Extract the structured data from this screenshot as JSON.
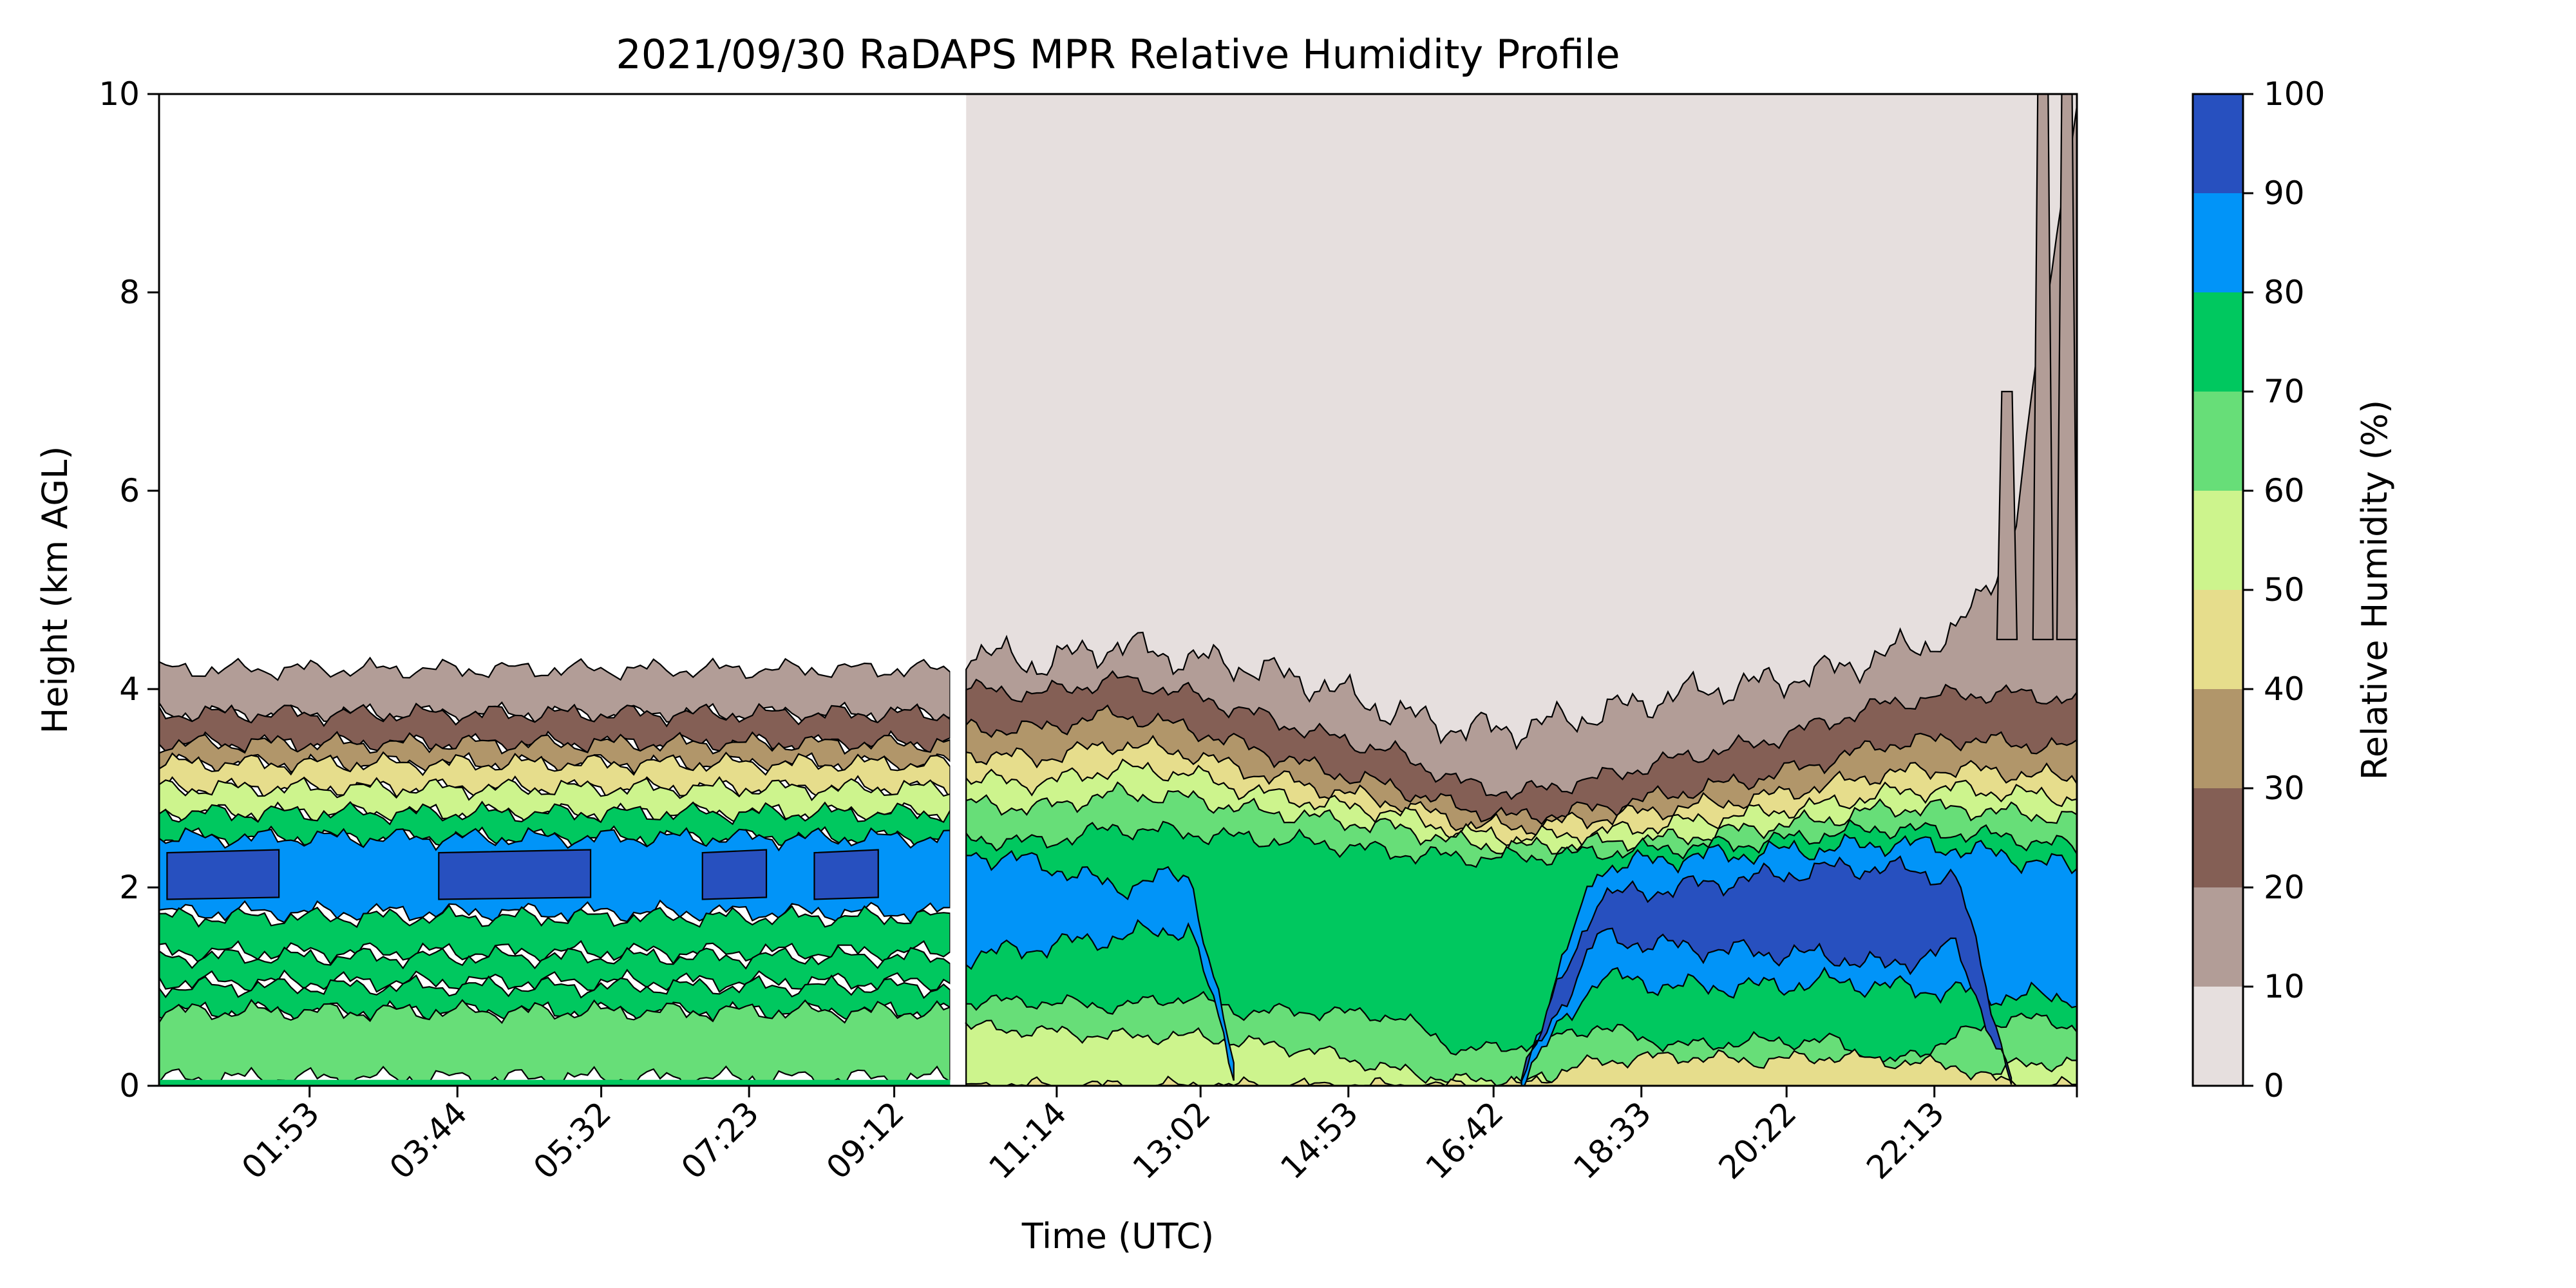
{
  "chart_data": {
    "type": "heatmap",
    "subtype": "filled-contour",
    "title": "2021/09/30 RaDAPS MPR Relative Humidity Profile",
    "xlabel": "Time (UTC)",
    "ylabel": "Height (km AGL)",
    "x_tick_labels": [
      "01:53",
      "03:44",
      "05:32",
      "07:23",
      "09:12",
      "11:14",
      "13:02",
      "14:53",
      "16:42",
      "18:33",
      "20:22",
      "22:13"
    ],
    "y_ticks": [
      0,
      2,
      4,
      6,
      8,
      10
    ],
    "ylim": [
      0,
      10
    ],
    "data_gap": "missing data for roughly the first ten hours above about 0.1 km; the section below about 4.3 km is banded while the upper part is blank",
    "colorbar": {
      "label": "Relative Humidity (%)",
      "ticks": [
        0,
        10,
        20,
        30,
        40,
        50,
        60,
        70,
        80,
        90,
        100
      ],
      "levels": [
        {
          "range": [
            0,
            10
          ],
          "color": "#e6dfde"
        },
        {
          "range": [
            10,
            20
          ],
          "color": "#b29d97"
        },
        {
          "range": [
            20,
            30
          ],
          "color": "#845f55"
        },
        {
          "range": [
            30,
            40
          ],
          "color": "#b1966a"
        },
        {
          "range": [
            40,
            50
          ],
          "color": "#e6dd8c"
        },
        {
          "range": [
            50,
            60
          ],
          "color": "#cdf48d"
        },
        {
          "range": [
            60,
            70
          ],
          "color": "#67de78"
        },
        {
          "range": [
            70,
            80
          ],
          "color": "#00c85f"
        },
        {
          "range": [
            80,
            90
          ],
          "color": "#0194f8"
        },
        {
          "range": [
            90,
            100
          ],
          "color": "#2750bf"
        }
      ]
    },
    "profiles_km": {
      "description": "approximate upper height of each RH level by time (hours UTC); band k spans up to the value for RH>=10*k",
      "time_h": [
        10.1,
        11.0,
        12.0,
        12.9,
        13.5,
        14.5,
        15.5,
        16.3,
        17.0,
        18.0,
        19.0,
        20.0,
        21.0,
        21.6,
        22.5,
        23.2,
        24.0
      ],
      "rh10": [
        4.4,
        4.25,
        4.45,
        4.3,
        4.25,
        4.05,
        3.75,
        3.6,
        3.6,
        3.75,
        3.95,
        4.05,
        4.2,
        4.35,
        4.55,
        5.5,
        10
      ],
      "rh20": [
        4.0,
        3.95,
        4.1,
        3.95,
        3.8,
        3.55,
        3.35,
        3.05,
        2.95,
        3.1,
        3.3,
        3.45,
        3.7,
        3.85,
        3.95,
        3.95,
        3.9
      ],
      "rh30": [
        3.6,
        3.6,
        3.75,
        3.6,
        3.45,
        3.2,
        3.0,
        2.8,
        2.7,
        2.8,
        2.95,
        3.1,
        3.3,
        3.45,
        3.5,
        3.45,
        3.4
      ],
      "rh40": [
        3.35,
        3.3,
        3.45,
        3.35,
        3.2,
        3.0,
        2.85,
        2.65,
        2.6,
        2.7,
        2.8,
        2.9,
        3.05,
        3.15,
        3.2,
        3.15,
        3.1
      ],
      "rh50": [
        3.1,
        3.05,
        3.2,
        3.15,
        3.0,
        2.85,
        2.75,
        2.55,
        2.5,
        2.55,
        2.65,
        2.75,
        2.85,
        2.95,
        3.0,
        2.95,
        2.9
      ],
      "rh60": [
        2.85,
        2.8,
        2.95,
        2.9,
        2.8,
        2.7,
        2.6,
        2.45,
        2.4,
        2.45,
        2.5,
        2.6,
        2.7,
        2.8,
        2.8,
        2.75,
        2.7
      ],
      "rh70": [
        2.5,
        2.45,
        2.6,
        2.55,
        2.5,
        2.45,
        2.35,
        2.3,
        2.3,
        2.35,
        2.4,
        2.45,
        2.55,
        2.6,
        2.55,
        2.5,
        2.4
      ],
      "rh80": [
        2.35,
        2.25,
        2.0,
        2.15,
        0,
        0,
        0,
        0,
        0,
        2.2,
        2.3,
        2.35,
        2.4,
        2.45,
        2.4,
        2.3,
        2.2
      ],
      "rh90": [
        0,
        0,
        0,
        0,
        0,
        0,
        0,
        0,
        0,
        1.9,
        2.0,
        2.1,
        2.2,
        2.2,
        2.1,
        0,
        0
      ],
      "rh80_bottom": [
        1.3,
        1.4,
        1.5,
        1.6,
        0,
        0,
        0,
        0,
        0,
        1.1,
        1.0,
        1.0,
        1.05,
        1.0,
        0.95,
        0.9,
        0.9
      ],
      "rh90_bottom": [
        0,
        0,
        0,
        0,
        0,
        0,
        0,
        0,
        0,
        1.5,
        1.4,
        1.35,
        1.3,
        1.2,
        1.4,
        0,
        0
      ],
      "rh70_bottom": [
        0.85,
        0.85,
        0.8,
        0.9,
        0.75,
        0.75,
        0.7,
        0.35,
        0.4,
        0.6,
        0.4,
        0.45,
        0.45,
        0.2,
        0.5,
        0.7,
        0.6
      ],
      "rh60_bottom": [
        0.6,
        0.55,
        0.5,
        0.5,
        0.45,
        0.35,
        0.15,
        0.05,
        0.05,
        0.05,
        0.05,
        0.0,
        0.0,
        0.0,
        0.0,
        0.2,
        0.25
      ],
      "rh50_bottom": [
        0,
        0,
        0,
        0,
        0,
        0,
        0,
        0,
        0,
        0.25,
        0.3,
        0.25,
        0.3,
        0.25,
        0.2,
        0,
        0
      ]
    }
  }
}
